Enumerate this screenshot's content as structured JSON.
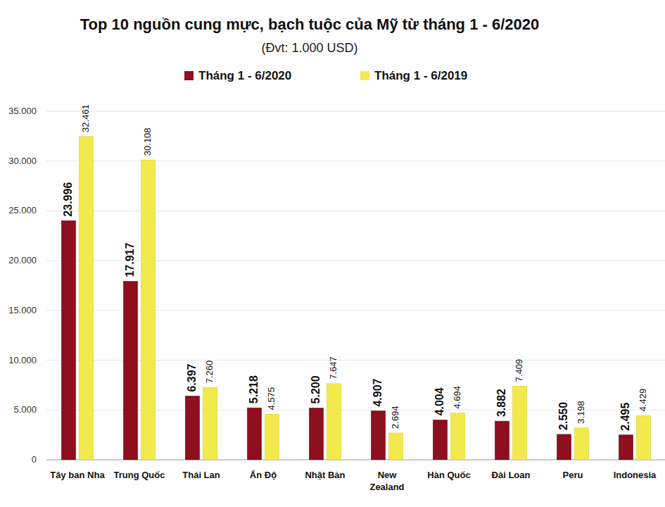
{
  "chart_data": {
    "type": "bar",
    "title": "Top 10 nguồn cung mực, bạch tuộc của Mỹ từ tháng 1 - 6/2020",
    "subtitle": "(Đvt: 1.000 USD)",
    "categories": [
      "Tây ban Nha",
      "Trung Quốc",
      "Thái Lan",
      "Ấn Độ",
      "Nhật Bản",
      "New\nZealand",
      "Hàn Quốc",
      "Đài Loan",
      "Peru",
      "Indonesia"
    ],
    "series": [
      {
        "name": "Tháng 1 - 6/2020",
        "color": "#8e0f1f",
        "values": [
          23996,
          17917,
          6397,
          5218,
          5200,
          4907,
          4004,
          3882,
          2550,
          2495
        ],
        "value_labels": [
          "23.996",
          "17.917",
          "6.397",
          "5.218",
          "5.200",
          "4.907",
          "4.004",
          "3.882",
          "2.550",
          "2.495"
        ]
      },
      {
        "name": "Tháng 1 - 6/2019",
        "color": "#f2ea4c",
        "values": [
          32461,
          30108,
          7260,
          4575,
          7647,
          2694,
          4694,
          7409,
          3198,
          4429
        ],
        "value_labels": [
          "32.461",
          "30.108",
          "7.260",
          "4.575",
          "7.647",
          "2.694",
          "4.694",
          "7.409",
          "3.198",
          "4.429"
        ]
      }
    ],
    "ylim": [
      0,
      35000
    ],
    "yticks": [
      0,
      {
        "value": 5000,
        "label": "5.000"
      },
      {
        "value": 10000,
        "label": "10.000"
      },
      {
        "value": 15000,
        "label": "15.000"
      },
      {
        "value": 20000,
        "label": "20.000"
      },
      {
        "value": 25000,
        "label": "25.000"
      },
      {
        "value": 30000,
        "label": "30.000"
      },
      {
        "value": 35000,
        "label": "35.000"
      }
    ],
    "grid": true,
    "legend": "top",
    "data_labels": true
  }
}
